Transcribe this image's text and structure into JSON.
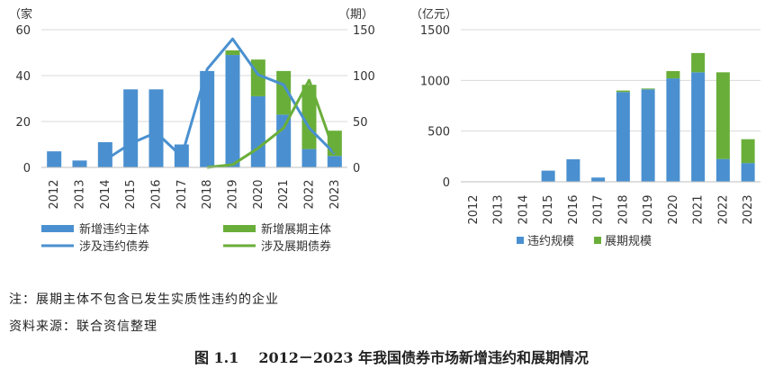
{
  "chart_data": [
    {
      "type": "bar",
      "categories": [
        "2012",
        "2013",
        "2014",
        "2015",
        "2016",
        "2017",
        "2018",
        "2019",
        "2020",
        "2021",
        "2022",
        "2023"
      ],
      "ylabel": "（家",
      "y2label": "（期）",
      "ylim": [
        0,
        60
      ],
      "y2lim": [
        0,
        150
      ],
      "yticks": [
        "0",
        "20",
        "40",
        "60"
      ],
      "y2ticks": [
        "0",
        "50",
        "100",
        "150"
      ],
      "grid": true,
      "legend_position": "bottom",
      "series": [
        {
          "name": "新增违约主体",
          "kind": "bar",
          "axis": "left",
          "color": "#4A90D0",
          "values": [
            7,
            3,
            11,
            34,
            34,
            10,
            42,
            49,
            31,
            23,
            8,
            5
          ]
        },
        {
          "name": "新增展期主体",
          "kind": "bar-stacked",
          "axis": "left",
          "color": "#6AAE3A",
          "values": [
            0,
            0,
            0,
            0,
            0,
            0,
            0,
            2,
            16,
            19,
            28,
            11
          ]
        },
        {
          "name": "涉及违约债券",
          "kind": "line",
          "axis": "right",
          "color": "#4A90D0",
          "values": [
            null,
            null,
            8,
            26,
            38,
            12,
            107,
            140,
            101,
            90,
            43,
            15
          ]
        },
        {
          "name": "涉及展期债券",
          "kind": "line",
          "axis": "right",
          "color": "#6AAE3A",
          "values": [
            null,
            null,
            null,
            null,
            null,
            null,
            0,
            3,
            21,
            43,
            95,
            16
          ]
        }
      ]
    },
    {
      "type": "bar",
      "categories": [
        "2012",
        "2013",
        "2014",
        "2015",
        "2016",
        "2017",
        "2018",
        "2019",
        "2020",
        "2021",
        "2022",
        "2023"
      ],
      "ylabel": "（亿元）",
      "ylim": [
        0,
        1500
      ],
      "yticks": [
        "0",
        "500",
        "1000",
        "1500"
      ],
      "grid": true,
      "legend_position": "bottom",
      "series": [
        {
          "name": "违约规模",
          "color": "#4A90D0",
          "values": [
            0,
            0,
            0,
            110,
            222,
            42,
            885,
            912,
            1020,
            1080,
            225,
            185
          ]
        },
        {
          "name": "展期规模",
          "color": "#6AAE3A",
          "values": [
            0,
            0,
            0,
            0,
            0,
            0,
            15,
            8,
            72,
            190,
            855,
            235
          ]
        }
      ]
    }
  ],
  "notes": {
    "note_1": "注：展期主体不包含已发生实质性违约的企业",
    "note_2": "资料来源：联合资信整理"
  },
  "caption": {
    "number": "图 1.1",
    "title": "2012－2023 年我国债券市场新增违约和展期情况"
  }
}
